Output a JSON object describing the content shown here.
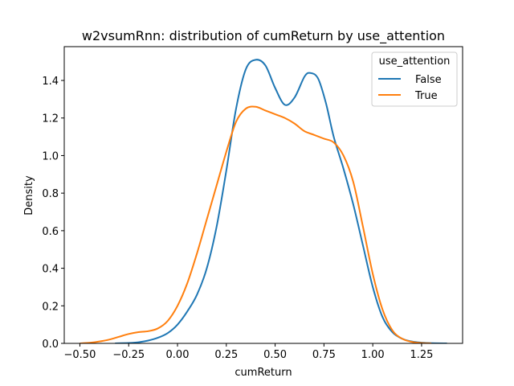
{
  "chart_data": {
    "type": "line",
    "title": "w2vsumRnn: distribution of cumReturn by use_attention",
    "xlabel": "cumReturn",
    "ylabel": "Density",
    "xlim": [
      -0.58,
      1.46
    ],
    "ylim": [
      0,
      1.58
    ],
    "x_ticks": [
      -0.5,
      -0.25,
      0.0,
      0.25,
      0.5,
      0.75,
      1.0,
      1.25
    ],
    "x_tick_labels": [
      "−0.50",
      "−0.25",
      "0.00",
      "0.25",
      "0.50",
      "0.75",
      "1.00",
      "1.25"
    ],
    "y_ticks": [
      0.0,
      0.2,
      0.4,
      0.6,
      0.8,
      1.0,
      1.2,
      1.4
    ],
    "y_tick_labels": [
      "0.0",
      "0.2",
      "0.4",
      "0.6",
      "0.8",
      "1.0",
      "1.2",
      "1.4"
    ],
    "grid": false,
    "legend": {
      "title": "use_attention",
      "position": "top-right"
    },
    "series": [
      {
        "name": "False",
        "color": "#1f77b4",
        "points": [
          [
            -0.32,
            0.0
          ],
          [
            -0.25,
            0.002
          ],
          [
            -0.2,
            0.006
          ],
          [
            -0.15,
            0.015
          ],
          [
            -0.1,
            0.03
          ],
          [
            -0.05,
            0.055
          ],
          [
            0.0,
            0.1
          ],
          [
            0.05,
            0.17
          ],
          [
            0.1,
            0.26
          ],
          [
            0.15,
            0.4
          ],
          [
            0.2,
            0.62
          ],
          [
            0.25,
            0.92
          ],
          [
            0.3,
            1.25
          ],
          [
            0.35,
            1.46
          ],
          [
            0.4,
            1.51
          ],
          [
            0.45,
            1.48
          ],
          [
            0.5,
            1.36
          ],
          [
            0.55,
            1.27
          ],
          [
            0.6,
            1.31
          ],
          [
            0.65,
            1.42
          ],
          [
            0.68,
            1.44
          ],
          [
            0.72,
            1.41
          ],
          [
            0.76,
            1.28
          ],
          [
            0.8,
            1.1
          ],
          [
            0.85,
            0.93
          ],
          [
            0.9,
            0.74
          ],
          [
            0.95,
            0.52
          ],
          [
            1.0,
            0.3
          ],
          [
            1.05,
            0.14
          ],
          [
            1.1,
            0.06
          ],
          [
            1.15,
            0.025
          ],
          [
            1.2,
            0.01
          ],
          [
            1.25,
            0.004
          ],
          [
            1.3,
            0.001
          ],
          [
            1.38,
            0.0
          ]
        ]
      },
      {
        "name": "True",
        "color": "#ff7f0e",
        "points": [
          [
            -0.5,
            0.0
          ],
          [
            -0.45,
            0.003
          ],
          [
            -0.4,
            0.01
          ],
          [
            -0.35,
            0.02
          ],
          [
            -0.3,
            0.035
          ],
          [
            -0.25,
            0.05
          ],
          [
            -0.2,
            0.06
          ],
          [
            -0.15,
            0.065
          ],
          [
            -0.1,
            0.08
          ],
          [
            -0.05,
            0.12
          ],
          [
            0.0,
            0.2
          ],
          [
            0.05,
            0.32
          ],
          [
            0.1,
            0.48
          ],
          [
            0.15,
            0.66
          ],
          [
            0.2,
            0.84
          ],
          [
            0.25,
            1.02
          ],
          [
            0.3,
            1.18
          ],
          [
            0.35,
            1.25
          ],
          [
            0.4,
            1.26
          ],
          [
            0.45,
            1.24
          ],
          [
            0.5,
            1.22
          ],
          [
            0.55,
            1.2
          ],
          [
            0.6,
            1.17
          ],
          [
            0.65,
            1.13
          ],
          [
            0.7,
            1.11
          ],
          [
            0.75,
            1.09
          ],
          [
            0.8,
            1.07
          ],
          [
            0.85,
            1.0
          ],
          [
            0.9,
            0.86
          ],
          [
            0.95,
            0.62
          ],
          [
            1.0,
            0.37
          ],
          [
            1.05,
            0.18
          ],
          [
            1.1,
            0.07
          ],
          [
            1.15,
            0.025
          ],
          [
            1.2,
            0.008
          ],
          [
            1.25,
            0.002
          ],
          [
            1.3,
            0.0
          ]
        ]
      }
    ]
  }
}
